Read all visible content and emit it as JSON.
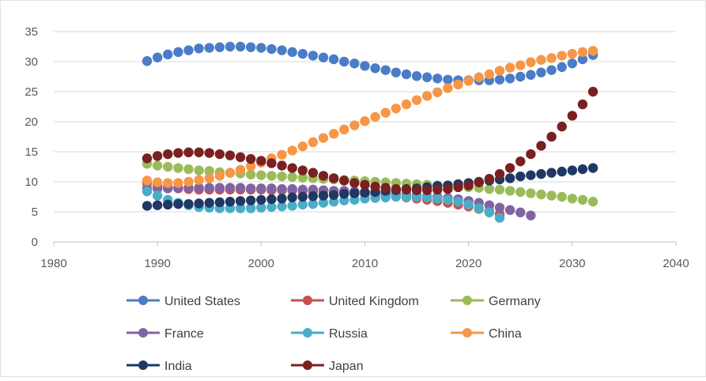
{
  "chart_data": {
    "type": "scatter",
    "title": "",
    "xlabel": "",
    "ylabel": "",
    "xlim": [
      1980,
      2040
    ],
    "ylim": [
      0,
      35
    ],
    "xticks": [
      "1980",
      "1990",
      "2000",
      "2010",
      "2020",
      "2030",
      "2040"
    ],
    "yticks": [
      "0",
      "5",
      "10",
      "15",
      "20",
      "25",
      "30",
      "35"
    ],
    "grid": "horizontal",
    "legend_position": "bottom",
    "series": [
      {
        "name": "United States",
        "color": "#4a7cc7",
        "x": [
          1989,
          1990,
          1991,
          1992,
          1993,
          1994,
          1995,
          1996,
          1997,
          1998,
          1999,
          2000,
          2001,
          2002,
          2003,
          2004,
          2005,
          2006,
          2007,
          2008,
          2009,
          2010,
          2011,
          2012,
          2013,
          2014,
          2015,
          2016,
          2017,
          2018,
          2019,
          2020,
          2021,
          2022,
          2023,
          2024,
          2025,
          2026,
          2027,
          2028,
          2029,
          2030,
          2031,
          2032
        ],
        "y": [
          30.1,
          30.7,
          31.2,
          31.6,
          31.9,
          32.2,
          32.3,
          32.4,
          32.5,
          32.5,
          32.4,
          32.3,
          32.1,
          31.9,
          31.6,
          31.3,
          31.0,
          30.7,
          30.4,
          30.0,
          29.7,
          29.3,
          28.9,
          28.6,
          28.2,
          27.9,
          27.6,
          27.4,
          27.2,
          27.0,
          26.9,
          26.9,
          26.9,
          26.9,
          27.0,
          27.2,
          27.5,
          27.8,
          28.2,
          28.6,
          29.1,
          29.7,
          30.4,
          31.1
        ]
      },
      {
        "name": "United Kingdom",
        "color": "#c9504c",
        "x": [
          1989,
          1990,
          1991,
          1992,
          1993,
          1994,
          1995,
          1996,
          1997,
          1998,
          1999,
          2000,
          2001,
          2002,
          2003,
          2004,
          2005,
          2006,
          2007,
          2008,
          2009,
          2010,
          2011,
          2012,
          2013,
          2014,
          2015,
          2016,
          2017,
          2018,
          2019,
          2020,
          2021,
          2022,
          2023
        ],
        "y": [
          9.8,
          9.4,
          9.1,
          8.9,
          8.8,
          8.7,
          8.7,
          8.7,
          8.7,
          8.7,
          8.7,
          8.7,
          8.6,
          8.6,
          8.6,
          8.5,
          8.4,
          8.4,
          8.3,
          8.2,
          8.1,
          8.0,
          7.9,
          7.7,
          7.6,
          7.4,
          7.2,
          7.0,
          6.8,
          6.5,
          6.2,
          5.9,
          5.5,
          5.1,
          4.6
        ]
      },
      {
        "name": "Germany",
        "color": "#9bbb59",
        "x": [
          1989,
          1990,
          1991,
          1992,
          1993,
          1994,
          1995,
          1996,
          1997,
          1998,
          1999,
          2000,
          2001,
          2002,
          2003,
          2004,
          2005,
          2006,
          2007,
          2008,
          2009,
          2010,
          2011,
          2012,
          2013,
          2014,
          2015,
          2016,
          2017,
          2018,
          2019,
          2020,
          2021,
          2022,
          2023,
          2024,
          2025,
          2026,
          2027,
          2028,
          2029,
          2030,
          2031,
          2032
        ],
        "y": [
          13.0,
          12.7,
          12.5,
          12.3,
          12.1,
          11.9,
          11.8,
          11.6,
          11.5,
          11.4,
          11.2,
          11.1,
          11.0,
          10.9,
          10.8,
          10.7,
          10.6,
          10.5,
          10.4,
          10.3,
          10.2,
          10.1,
          10.0,
          9.9,
          9.8,
          9.7,
          9.6,
          9.5,
          9.4,
          9.3,
          9.2,
          9.1,
          9.0,
          8.8,
          8.7,
          8.5,
          8.3,
          8.1,
          7.9,
          7.7,
          7.5,
          7.2,
          7.0,
          6.7
        ]
      },
      {
        "name": "France",
        "color": "#8064a2",
        "x": [
          1989,
          1990,
          1991,
          1992,
          1993,
          1994,
          1995,
          1996,
          1997,
          1998,
          1999,
          2000,
          2001,
          2002,
          2003,
          2004,
          2005,
          2006,
          2007,
          2008,
          2009,
          2010,
          2011,
          2012,
          2013,
          2014,
          2015,
          2016,
          2017,
          2018,
          2019,
          2020,
          2021,
          2022,
          2023,
          2024,
          2025,
          2026
        ],
        "y": [
          8.9,
          8.9,
          8.9,
          9.0,
          9.0,
          9.0,
          9.0,
          9.0,
          9.0,
          9.0,
          8.9,
          8.9,
          8.9,
          8.8,
          8.8,
          8.7,
          8.7,
          8.6,
          8.5,
          8.5,
          8.4,
          8.3,
          8.2,
          8.1,
          8.0,
          7.9,
          7.8,
          7.6,
          7.5,
          7.3,
          7.1,
          6.8,
          6.5,
          6.1,
          5.7,
          5.3,
          4.9,
          4.4
        ]
      },
      {
        "name": "Russia",
        "color": "#4bacc6",
        "x": [
          1989,
          1990,
          1991,
          1992,
          1993,
          1994,
          1995,
          1996,
          1997,
          1998,
          1999,
          2000,
          2001,
          2002,
          2003,
          2004,
          2005,
          2006,
          2007,
          2008,
          2009,
          2010,
          2011,
          2012,
          2013,
          2014,
          2015,
          2016,
          2017,
          2018,
          2019,
          2020,
          2021,
          2022,
          2023
        ],
        "y": [
          8.4,
          7.7,
          7.0,
          6.5,
          6.1,
          5.8,
          5.7,
          5.6,
          5.6,
          5.6,
          5.6,
          5.7,
          5.8,
          5.9,
          6.0,
          6.2,
          6.3,
          6.5,
          6.7,
          6.9,
          7.0,
          7.2,
          7.3,
          7.4,
          7.5,
          7.5,
          7.5,
          7.4,
          7.2,
          7.0,
          6.7,
          6.2,
          5.6,
          4.9,
          4.0
        ]
      },
      {
        "name": "China",
        "color": "#f79646",
        "x": [
          1989,
          1990,
          1991,
          1992,
          1993,
          1994,
          1995,
          1996,
          1997,
          1998,
          1999,
          2000,
          2001,
          2002,
          2003,
          2004,
          2005,
          2006,
          2007,
          2008,
          2009,
          2010,
          2011,
          2012,
          2013,
          2014,
          2015,
          2016,
          2017,
          2018,
          2019,
          2020,
          2021,
          2022,
          2023,
          2024,
          2025,
          2026,
          2027,
          2028,
          2029,
          2030,
          2031,
          2032
        ],
        "y": [
          10.2,
          9.9,
          9.8,
          9.8,
          10.0,
          10.3,
          10.6,
          11.0,
          11.5,
          12.0,
          12.6,
          13.2,
          13.9,
          14.5,
          15.2,
          15.9,
          16.6,
          17.3,
          18.0,
          18.7,
          19.4,
          20.1,
          20.8,
          21.5,
          22.2,
          22.9,
          23.6,
          24.3,
          24.9,
          25.6,
          26.2,
          26.8,
          27.4,
          27.9,
          28.5,
          29.0,
          29.4,
          29.9,
          30.3,
          30.6,
          31.0,
          31.3,
          31.6,
          31.8
        ]
      },
      {
        "name": "India",
        "color": "#1f3864",
        "x": [
          1989,
          1990,
          1991,
          1992,
          1993,
          1994,
          1995,
          1996,
          1997,
          1998,
          1999,
          2000,
          2001,
          2002,
          2003,
          2004,
          2005,
          2006,
          2007,
          2008,
          2009,
          2010,
          2011,
          2012,
          2013,
          2014,
          2015,
          2016,
          2017,
          2018,
          2019,
          2020,
          2021,
          2022,
          2023,
          2024,
          2025,
          2026,
          2027,
          2028,
          2029,
          2030,
          2031,
          2032
        ],
        "y": [
          6.0,
          6.1,
          6.2,
          6.3,
          6.3,
          6.4,
          6.5,
          6.6,
          6.7,
          6.8,
          6.9,
          7.0,
          7.1,
          7.2,
          7.4,
          7.5,
          7.6,
          7.7,
          7.8,
          8.0,
          8.1,
          8.2,
          8.3,
          8.5,
          8.6,
          8.8,
          8.9,
          9.1,
          9.3,
          9.4,
          9.6,
          9.8,
          10.0,
          10.2,
          10.4,
          10.6,
          10.9,
          11.1,
          11.3,
          11.5,
          11.7,
          11.9,
          12.1,
          12.3
        ]
      },
      {
        "name": "Japan",
        "color": "#7b2020",
        "x": [
          1989,
          1990,
          1991,
          1992,
          1993,
          1994,
          1995,
          1996,
          1997,
          1998,
          1999,
          2000,
          2001,
          2002,
          2003,
          2004,
          2005,
          2006,
          2007,
          2008,
          2009,
          2010,
          2011,
          2012,
          2013,
          2014,
          2015,
          2016,
          2017,
          2018,
          2019,
          2020,
          2021,
          2022,
          2023,
          2024,
          2025,
          2026,
          2027,
          2028,
          2029,
          2030,
          2031,
          2032
        ],
        "y": [
          13.9,
          14.3,
          14.6,
          14.8,
          14.9,
          14.9,
          14.8,
          14.6,
          14.4,
          14.1,
          13.8,
          13.5,
          13.1,
          12.7,
          12.3,
          11.9,
          11.5,
          11.0,
          10.6,
          10.2,
          9.8,
          9.5,
          9.2,
          9.0,
          8.8,
          8.7,
          8.6,
          8.6,
          8.7,
          8.8,
          9.1,
          9.4,
          9.9,
          10.5,
          11.3,
          12.3,
          13.4,
          14.6,
          16.0,
          17.5,
          19.2,
          21.0,
          22.9,
          25.0
        ]
      }
    ]
  }
}
